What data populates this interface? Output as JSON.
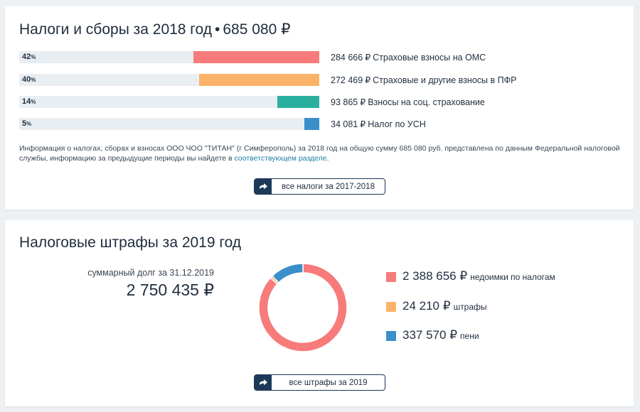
{
  "taxes": {
    "title_text": "Налоги и сборы за 2018 год",
    "title_sep": "•",
    "title_total": "685 080",
    "currency": "₽",
    "items": [
      {
        "pct": "42",
        "pct_sign": "%",
        "fraction": 0.42,
        "amount": "284 666",
        "label": "Страховые взносы на ОМС",
        "color": "#f77b7b"
      },
      {
        "pct": "40",
        "pct_sign": "%",
        "fraction": 0.4,
        "amount": "272 469",
        "label": "Страховые и другие взносы в ПФР",
        "color": "#fbb369"
      },
      {
        "pct": "14",
        "pct_sign": "%",
        "fraction": 0.14,
        "amount": "93 865",
        "label": "Взносы на соц. страхование",
        "color": "#2bb0a0"
      },
      {
        "pct": "5",
        "pct_sign": "%",
        "fraction": 0.05,
        "amount": "34 081",
        "label": "Налог по УСН",
        "color": "#3a8fc9"
      }
    ],
    "info_text": "Информация о налогах, сборах и взносах ООО ЧОО \"ТИТАН\" (г Симферополь) за 2018 год на общую сумму 685 080 руб. представлена по данным Федеральной налоговой службы, информацию за предыдущие периоды вы найдете в ",
    "info_link": "соответствующем разделе",
    "info_end": ".",
    "button_icon": "arrow-right-icon",
    "button_label": "все налоги за 2017-2018"
  },
  "fines": {
    "title": "Налоговые штрафы за 2019 год",
    "debt_caption": "суммарный долг за 31.12.2019",
    "debt_value": "2 750 435 ₽",
    "currency": "₽",
    "legend": [
      {
        "amount": "2 388 656",
        "label": "недоимки по налогам",
        "color": "#f77b7b",
        "value": 2388656
      },
      {
        "amount": "24 210",
        "label": "штрафы",
        "color": "#fbb369",
        "value": 24210
      },
      {
        "amount": "337 570",
        "label": "пени",
        "color": "#3a8fc9",
        "value": 337570
      }
    ],
    "button_icon": "arrow-right-icon",
    "button_label": "все штрафы за 2019"
  }
}
